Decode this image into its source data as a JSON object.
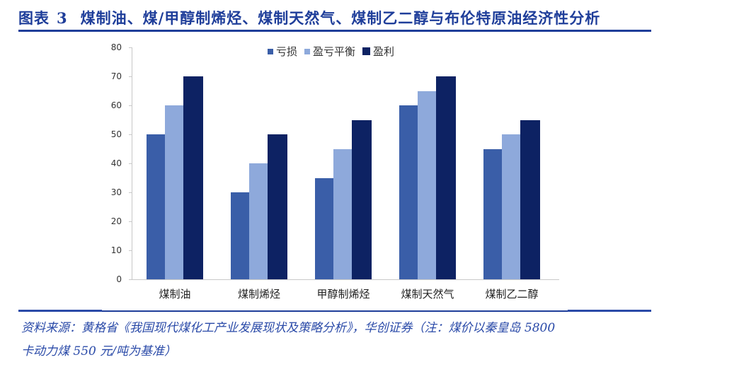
{
  "header": {
    "figure_label": "图表",
    "figure_number": "3",
    "title": "煤制油、煤/甲醇制烯烃、煤制天然气、煤制乙二醇与布伦特原油经济性分析"
  },
  "colors": {
    "title": "#1f3e9a",
    "series_loss": "#3a5ea8",
    "series_breakeven": "#8ea9db",
    "series_profit": "#0d2263",
    "axis": "#c8c8c8",
    "source_text": "#2a4aa8"
  },
  "legend": {
    "items": [
      {
        "label": "亏损",
        "color": "#3a5ea8"
      },
      {
        "label": "盈亏平衡",
        "color": "#8ea9db"
      },
      {
        "label": "盈利",
        "color": "#0d2263"
      }
    ]
  },
  "chart_data": {
    "type": "bar",
    "title": "煤制油、煤/甲醇制烯烃、煤制天然气、煤制乙二醇与布伦特原油经济性分析",
    "xlabel": "",
    "ylabel": "",
    "categories": [
      "煤制油",
      "煤制烯烃",
      "甲醇制烯烃",
      "煤制天然气",
      "煤制乙二醇"
    ],
    "series": [
      {
        "name": "亏损",
        "values": [
          50,
          30,
          35,
          60,
          45
        ]
      },
      {
        "name": "盈亏平衡",
        "values": [
          60,
          40,
          45,
          65,
          50
        ]
      },
      {
        "name": "盈利",
        "values": [
          70,
          50,
          55,
          70,
          55
        ]
      }
    ],
    "ylim": [
      0,
      80
    ],
    "yticks": [
      0,
      10,
      20,
      30,
      40,
      50,
      60,
      70,
      80
    ],
    "grid": false,
    "legend_position": "top"
  },
  "axis": {
    "yticks": [
      "0",
      "10",
      "20",
      "30",
      "40",
      "50",
      "60",
      "70",
      "80"
    ]
  },
  "source": {
    "line1": "资料来源：黄格省《我国现代煤化工产业发展现状及策略分析》，华创证券（注：煤价以秦皇岛 5800",
    "line2": "卡动力煤 550 元/吨为基准）"
  }
}
